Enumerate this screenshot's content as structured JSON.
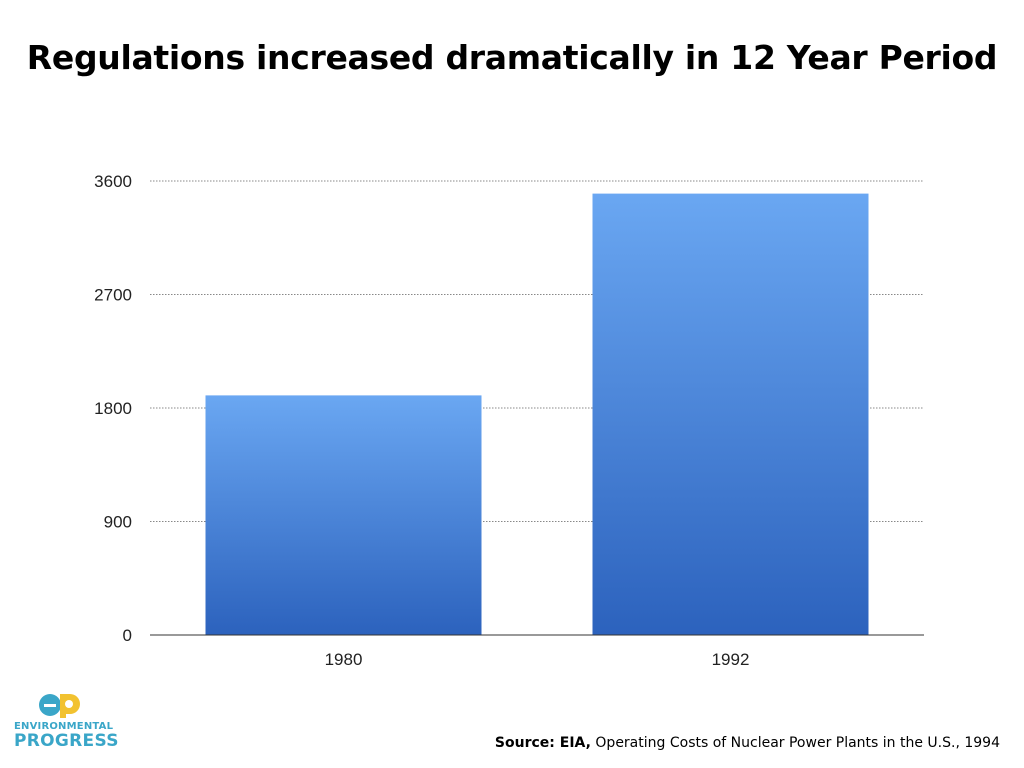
{
  "chart_data": {
    "type": "bar",
    "title": "Regulations increased dramatically in 12 Year Period",
    "categories": [
      "1980",
      "1992"
    ],
    "values": [
      1900,
      3500
    ],
    "ylim": [
      0,
      3600
    ],
    "yticks": [
      "0",
      "900",
      "1800",
      "2700",
      "3600"
    ],
    "grid": true,
    "legend": "none",
    "colors": {
      "bar_top": "#6aa7f2",
      "bar_bottom": "#2c62bd",
      "grid": "#888888",
      "axis": "#333333"
    }
  },
  "logo": {
    "line1": "ENVIRONMENTAL",
    "line2": "PROGRESS",
    "colors": {
      "teal": "#3aa6c8",
      "yellow": "#f2c230"
    }
  },
  "source": {
    "label": "Source: EIA,",
    "text": "Operating Costs of Nuclear Power Plants in the U.S., 1994"
  }
}
